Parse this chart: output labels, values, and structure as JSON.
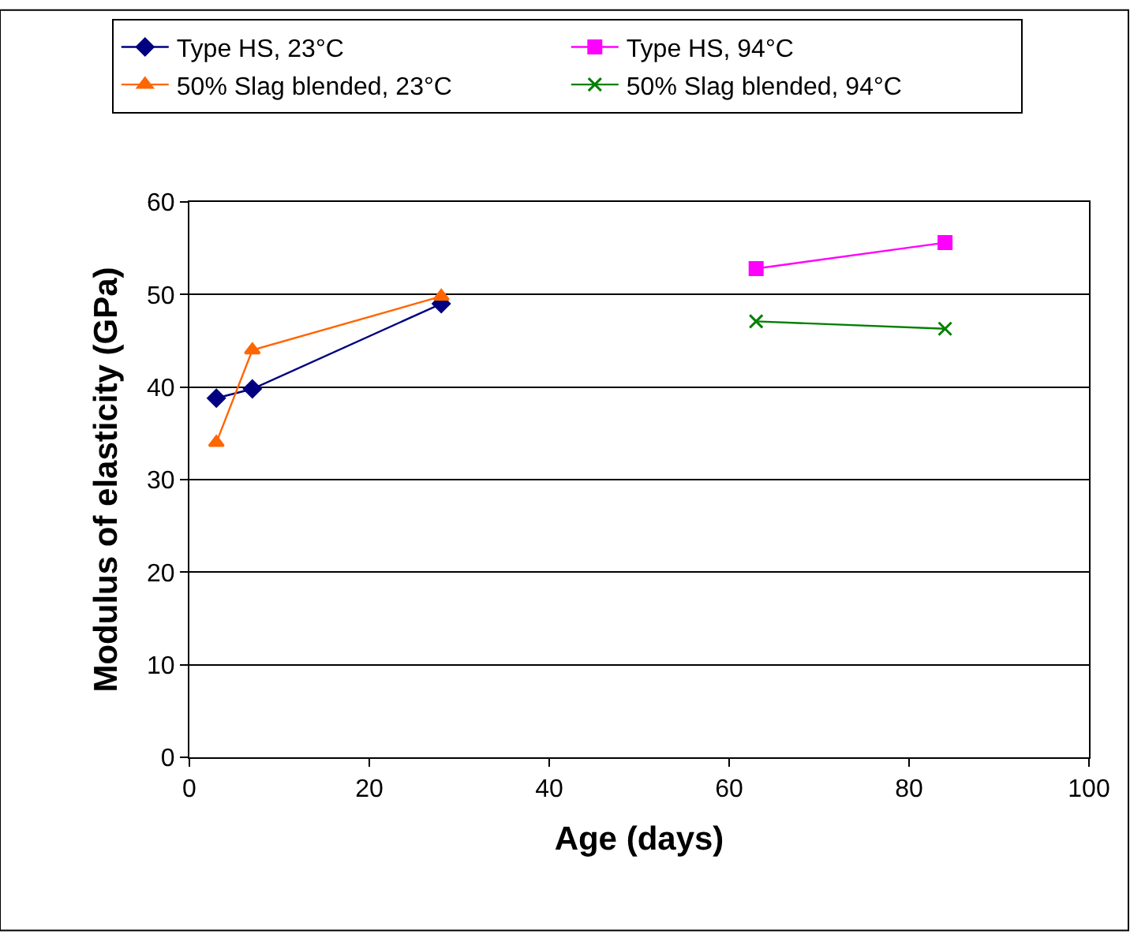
{
  "chart_data": {
    "type": "line",
    "xlabel": "Age (days)",
    "ylabel": "Modulus of elasticity (GPa)",
    "xlim": [
      0,
      100
    ],
    "xticks": [
      0,
      20,
      40,
      60,
      80,
      100
    ],
    "ylim": [
      0,
      60
    ],
    "yticks": [
      0,
      10,
      20,
      30,
      40,
      50,
      60
    ],
    "grid": "y",
    "legend": "top",
    "series": [
      {
        "name": "Type HS, 23°C",
        "color": "#000080",
        "marker": "diamond",
        "x": [
          3,
          7,
          28
        ],
        "values": [
          38.8,
          39.8,
          49.0
        ]
      },
      {
        "name": "Type HS, 94°C",
        "color": "#ff00ff",
        "marker": "square",
        "x": [
          63,
          84
        ],
        "values": [
          52.8,
          55.6
        ]
      },
      {
        "name": "50% Slag blended, 23°C",
        "color": "#ff6600",
        "marker": "triangle",
        "x": [
          3,
          7,
          28
        ],
        "values": [
          34.0,
          44.0,
          49.8
        ]
      },
      {
        "name": "50% Slag blended, 94°C",
        "color": "#008000",
        "marker": "cross",
        "x": [
          63,
          84
        ],
        "values": [
          47.1,
          46.3
        ]
      }
    ]
  }
}
